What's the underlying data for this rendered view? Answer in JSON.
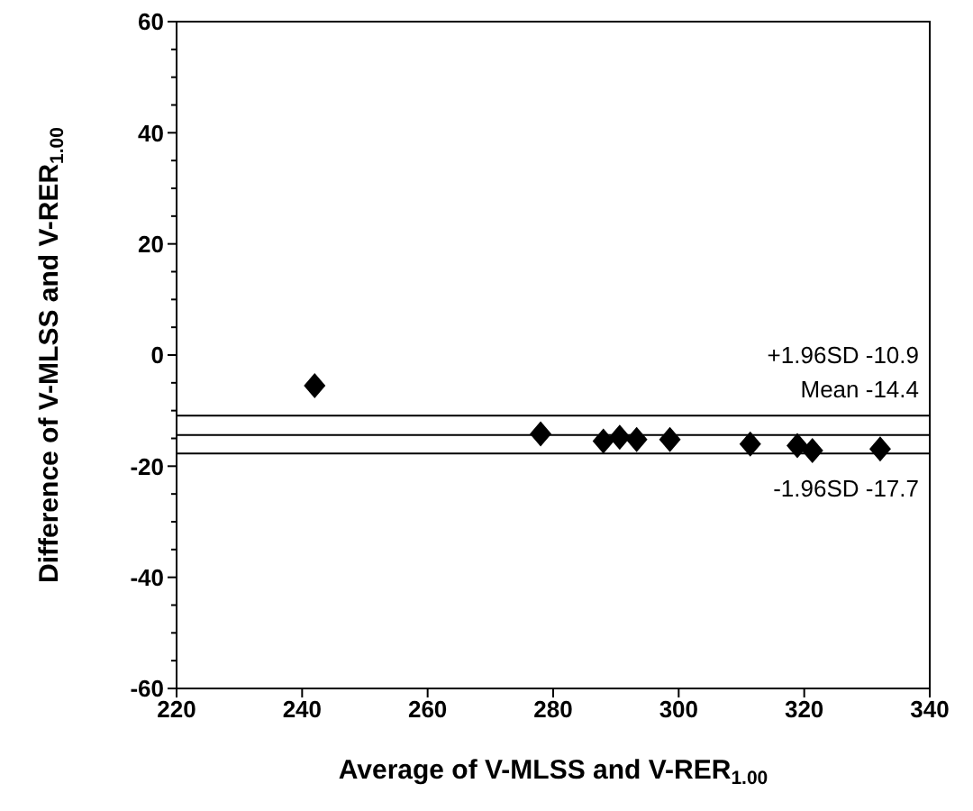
{
  "chart_data": {
    "type": "scatter",
    "xlabel": "Average of V-MLSS and V-RER$_{1.00}$",
    "ylabel": "Difference of V-MLSS and V-RER$_{1.00}$",
    "x": [
      242,
      278,
      288,
      290.6,
      293.3,
      298.6,
      311.4,
      318.9,
      321.3,
      332.1
    ],
    "series": [
      {
        "color": "#000000",
        "values": [
          -5.5,
          -14.2,
          -15.5,
          -14.8,
          -15.2,
          -15.2,
          -16,
          -16.3,
          -17.2,
          -16.9
        ]
      }
    ],
    "marker": "diamond",
    "xlim": [
      220,
      340
    ],
    "xticks": [
      220,
      240,
      260,
      280,
      300,
      320,
      340
    ],
    "ylim": [
      -60,
      60
    ],
    "yticks": [
      -60,
      -40,
      -20,
      0,
      20,
      40,
      60
    ],
    "grid": false,
    "legend": false,
    "ref_lines": [
      {
        "axis": "y",
        "value": -10.9,
        "label": "+1.96SD -10.9",
        "color": "#000000"
      },
      {
        "axis": "y",
        "value": -14.4,
        "label": "Mean -14.4",
        "color": "#000000"
      },
      {
        "axis": "y",
        "value": -17.7,
        "label": "-1.96SD -17.7",
        "color": "#000000"
      }
    ]
  }
}
